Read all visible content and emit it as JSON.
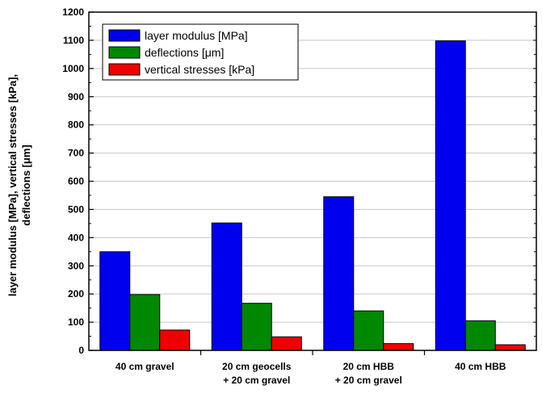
{
  "chart_data": {
    "type": "bar",
    "title": "",
    "categories": [
      [
        "40 cm gravel"
      ],
      [
        "20 cm geocells",
        "+ 20 cm gravel"
      ],
      [
        "20 cm HBB",
        "+ 20 cm gravel"
      ],
      [
        "40 cm HBB"
      ]
    ],
    "series": [
      {
        "name": "layer modulus [MPa]",
        "color": "#0000ee",
        "values": [
          350,
          452,
          545,
          1098
        ]
      },
      {
        "name": "deflections [μm]",
        "color": "#008800",
        "values": [
          198,
          167,
          140,
          105
        ]
      },
      {
        "name": "vertical stresses [kPa]",
        "color": "#ee0000",
        "values": [
          72,
          48,
          24,
          20
        ]
      }
    ],
    "ylabel": [
      "layer modulus [MPa], vertical stresses [kPa],",
      "deflections [μm]"
    ],
    "xlabel": "",
    "ylim": [
      0,
      1200
    ],
    "yticks": [
      0,
      100,
      200,
      300,
      400,
      500,
      600,
      700,
      800,
      900,
      1000,
      1100,
      1200
    ],
    "grid": "horizontal",
    "legend": "top-left"
  }
}
